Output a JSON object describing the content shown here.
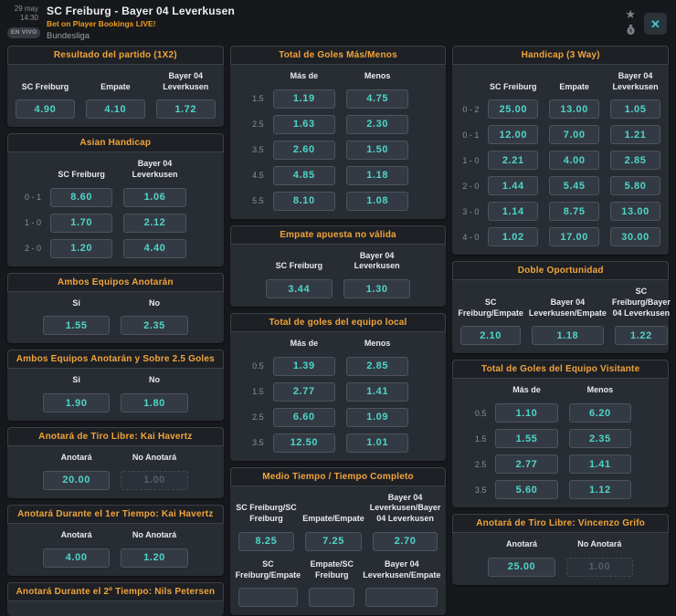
{
  "window": {
    "date": "29 may",
    "time": "14:30",
    "live_badge": "EN VIVO",
    "title": "SC Freiburg - Bayer 04 Leverkusen",
    "subtitle": "Bet on Player Bookings LIVE!",
    "league": "Bundesliga",
    "star_glyph": "★",
    "close_glyph": "✕"
  },
  "colors": {
    "accent_orange": "#f1a43b",
    "odds_cyan": "#4ed5c9",
    "close_cyan": "#3ec9d2",
    "card_bg": "#282c33",
    "page_bg": "#17181c"
  },
  "columns": [
    [
      {
        "title": "Resultado del partido (1X2)",
        "blocks": [
          {
            "headers": [
              "SC Freiburg",
              "Empate",
              "Bayer 04 Leverkusen"
            ],
            "rows": [
              {
                "label": "",
                "odds": [
                  {
                    "value": "4.90"
                  },
                  {
                    "value": "4.10"
                  },
                  {
                    "value": "1.72"
                  }
                ]
              }
            ]
          }
        ]
      },
      {
        "title": "Asian Handicap",
        "blocks": [
          {
            "headers": [
              "SC Freiburg",
              "Bayer 04 Leverkusen"
            ],
            "rows": [
              {
                "label": "0 - 1",
                "odds": [
                  {
                    "value": "8.60"
                  },
                  {
                    "value": "1.06"
                  }
                ]
              },
              {
                "label": "1 - 0",
                "odds": [
                  {
                    "value": "1.70"
                  },
                  {
                    "value": "2.12"
                  }
                ]
              },
              {
                "label": "2 - 0",
                "odds": [
                  {
                    "value": "1.20"
                  },
                  {
                    "value": "4.40"
                  }
                ]
              }
            ]
          }
        ]
      },
      {
        "title": "Ambos Equipos Anotarán",
        "blocks": [
          {
            "headers": [
              "Si",
              "No"
            ],
            "rows": [
              {
                "label": "",
                "odds": [
                  {
                    "value": "1.55"
                  },
                  {
                    "value": "2.35"
                  }
                ]
              }
            ]
          }
        ]
      },
      {
        "title": "Ambos Equipos Anotarán y Sobre 2.5 Goles",
        "blocks": [
          {
            "headers": [
              "Si",
              "No"
            ],
            "rows": [
              {
                "label": "",
                "odds": [
                  {
                    "value": "1.90"
                  },
                  {
                    "value": "1.80"
                  }
                ]
              }
            ]
          }
        ]
      },
      {
        "title": "Anotará de Tiro Libre: Kai Havertz",
        "blocks": [
          {
            "headers": [
              "Anotará",
              "No Anotará"
            ],
            "rows": [
              {
                "label": "",
                "odds": [
                  {
                    "value": "20.00"
                  },
                  {
                    "value": "1.00",
                    "disabled": true
                  }
                ]
              }
            ]
          }
        ]
      },
      {
        "title": "Anotará Durante el 1er Tiempo: Kai Havertz",
        "blocks": [
          {
            "headers": [
              "Anotará",
              "No Anotará"
            ],
            "rows": [
              {
                "label": "",
                "odds": [
                  {
                    "value": "4.00"
                  },
                  {
                    "value": "1.20"
                  }
                ]
              }
            ]
          }
        ]
      },
      {
        "title": "Anotará Durante el 2º Tiempo: Nils Petersen",
        "blocks": []
      }
    ],
    [
      {
        "title": "Total de Goles Más/Menos",
        "blocks": [
          {
            "headers": [
              "Más de",
              "Menos"
            ],
            "rows": [
              {
                "label": "1.5",
                "odds": [
                  {
                    "value": "1.19"
                  },
                  {
                    "value": "4.75"
                  }
                ]
              },
              {
                "label": "2.5",
                "odds": [
                  {
                    "value": "1.63"
                  },
                  {
                    "value": "2.30"
                  }
                ]
              },
              {
                "label": "3.5",
                "odds": [
                  {
                    "value": "2.60"
                  },
                  {
                    "value": "1.50"
                  }
                ]
              },
              {
                "label": "4.5",
                "odds": [
                  {
                    "value": "4.85"
                  },
                  {
                    "value": "1.18"
                  }
                ]
              },
              {
                "label": "5.5",
                "odds": [
                  {
                    "value": "8.10"
                  },
                  {
                    "value": "1.08"
                  }
                ]
              }
            ]
          }
        ]
      },
      {
        "title": "Empate apuesta no válida",
        "blocks": [
          {
            "headers": [
              "SC Freiburg",
              "Bayer 04 Leverkusen"
            ],
            "rows": [
              {
                "label": "",
                "odds": [
                  {
                    "value": "3.44"
                  },
                  {
                    "value": "1.30"
                  }
                ]
              }
            ]
          }
        ]
      },
      {
        "title": "Total de goles del equipo local",
        "blocks": [
          {
            "headers": [
              "Más de",
              "Menos"
            ],
            "rows": [
              {
                "label": "0.5",
                "odds": [
                  {
                    "value": "1.39"
                  },
                  {
                    "value": "2.85"
                  }
                ]
              },
              {
                "label": "1.5",
                "odds": [
                  {
                    "value": "2.77"
                  },
                  {
                    "value": "1.41"
                  }
                ]
              },
              {
                "label": "2.5",
                "odds": [
                  {
                    "value": "6.60"
                  },
                  {
                    "value": "1.09"
                  }
                ]
              },
              {
                "label": "3.5",
                "odds": [
                  {
                    "value": "12.50"
                  },
                  {
                    "value": "1.01"
                  }
                ]
              }
            ]
          }
        ]
      },
      {
        "title": "Medio Tiempo / Tiempo Completo",
        "blocks": [
          {
            "headers": [
              "SC Freiburg/SC Freiburg",
              "Empate/Empate",
              "Bayer 04 Leverkusen/Bayer 04 Leverkusen"
            ],
            "rows": [
              {
                "label": "",
                "odds": [
                  {
                    "value": "8.25"
                  },
                  {
                    "value": "7.25"
                  },
                  {
                    "value": "2.70"
                  }
                ]
              }
            ]
          },
          {
            "headers": [
              "SC Freiburg/Empate",
              "Empate/SC Freiburg",
              "Bayer 04 Leverkusen/Empate"
            ],
            "rows": [
              {
                "label": "",
                "odds": [
                  {
                    "value": ""
                  },
                  {
                    "value": ""
                  },
                  {
                    "value": ""
                  }
                ]
              }
            ]
          }
        ]
      }
    ],
    [
      {
        "title": "Handicap (3 Way)",
        "blocks": [
          {
            "headers": [
              "SC Freiburg",
              "Empate",
              "Bayer 04 Leverkusen"
            ],
            "rows": [
              {
                "label": "0 - 2",
                "odds": [
                  {
                    "value": "25.00"
                  },
                  {
                    "value": "13.00"
                  },
                  {
                    "value": "1.05"
                  }
                ]
              },
              {
                "label": "0 - 1",
                "odds": [
                  {
                    "value": "12.00"
                  },
                  {
                    "value": "7.00"
                  },
                  {
                    "value": "1.21"
                  }
                ]
              },
              {
                "label": "1 - 0",
                "odds": [
                  {
                    "value": "2.21"
                  },
                  {
                    "value": "4.00"
                  },
                  {
                    "value": "2.85"
                  }
                ]
              },
              {
                "label": "2 - 0",
                "odds": [
                  {
                    "value": "1.44"
                  },
                  {
                    "value": "5.45"
                  },
                  {
                    "value": "5.80"
                  }
                ]
              },
              {
                "label": "3 - 0",
                "odds": [
                  {
                    "value": "1.14"
                  },
                  {
                    "value": "8.75"
                  },
                  {
                    "value": "13.00"
                  }
                ]
              },
              {
                "label": "4 - 0",
                "odds": [
                  {
                    "value": "1.02"
                  },
                  {
                    "value": "17.00"
                  },
                  {
                    "value": "30.00"
                  }
                ]
              }
            ]
          }
        ]
      },
      {
        "title": "Doble Oportunidad",
        "blocks": [
          {
            "headers": [
              "SC Freiburg/Empate",
              "Bayer 04 Leverkusen/Empate",
              "SC Freiburg/Bayer 04 Leverkusen"
            ],
            "rows": [
              {
                "label": "",
                "odds": [
                  {
                    "value": "2.10"
                  },
                  {
                    "value": "1.18"
                  },
                  {
                    "value": "1.22"
                  }
                ]
              }
            ]
          }
        ]
      },
      {
        "title": "Total de Goles del Equipo Visitante",
        "blocks": [
          {
            "headers": [
              "Más de",
              "Menos"
            ],
            "rows": [
              {
                "label": "0.5",
                "odds": [
                  {
                    "value": "1.10"
                  },
                  {
                    "value": "6.20"
                  }
                ]
              },
              {
                "label": "1.5",
                "odds": [
                  {
                    "value": "1.55"
                  },
                  {
                    "value": "2.35"
                  }
                ]
              },
              {
                "label": "2.5",
                "odds": [
                  {
                    "value": "2.77"
                  },
                  {
                    "value": "1.41"
                  }
                ]
              },
              {
                "label": "3.5",
                "odds": [
                  {
                    "value": "5.60"
                  },
                  {
                    "value": "1.12"
                  }
                ]
              }
            ]
          }
        ]
      },
      {
        "title": "Anotará de Tiro Libre: Vincenzo Grifo",
        "blocks": [
          {
            "headers": [
              "Anotará",
              "No Anotará"
            ],
            "rows": [
              {
                "label": "",
                "odds": [
                  {
                    "value": "25.00"
                  },
                  {
                    "value": "1.00",
                    "disabled": true
                  }
                ]
              }
            ]
          }
        ]
      }
    ]
  ]
}
